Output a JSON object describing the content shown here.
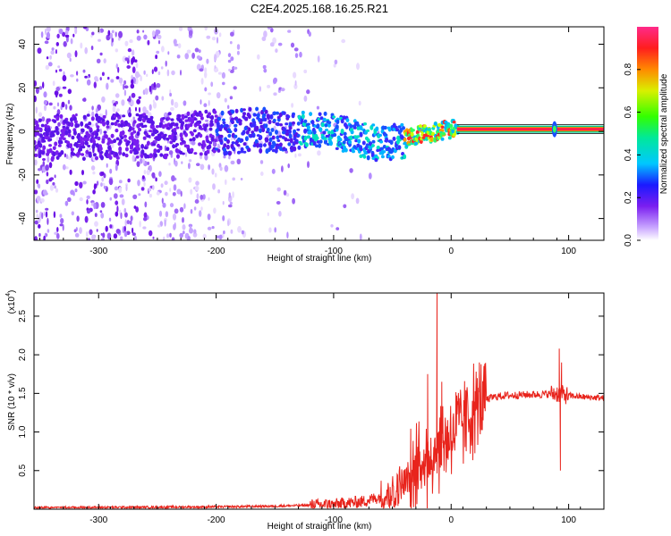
{
  "title": "C2E4.2025.168.16.25.R21",
  "colors": {
    "snr_line": "#e8241c",
    "spectrogram_band": "#7a1ef0",
    "carrier": "#ff1e4a"
  },
  "chart_data": [
    {
      "type": "heatmap",
      "title": "C2E4.2025.168.16.25.R21",
      "xlabel": "Height of straight line (km)",
      "ylabel": "Frequency (Hz)",
      "xlim": [
        -355,
        130
      ],
      "ylim": [
        -50,
        48
      ],
      "x_ticks": [
        -300,
        -200,
        -100,
        0,
        100
      ],
      "y_ticks": [
        -40,
        -20,
        0,
        20,
        40
      ],
      "x_tick_labels": [
        "-300",
        "-200",
        "-100",
        "0",
        "100"
      ],
      "y_tick_labels": [
        "-40",
        "-20",
        "0",
        "20",
        "40"
      ],
      "colorbar": {
        "label": "Normalized spectral amplitude",
        "range": [
          0,
          1
        ],
        "ticks": [
          0.0,
          0.2,
          0.4,
          0.6,
          0.8
        ],
        "tick_labels": [
          "0.0",
          "0.2",
          "0.4",
          "0.6",
          "0.8"
        ]
      },
      "band_center_hz": {
        "x": [
          -355,
          -250,
          -180,
          -130,
          -100,
          -80,
          -60,
          -45,
          -30,
          -20,
          -10,
          0,
          130
        ],
        "y": [
          -3,
          -2,
          0,
          1,
          0,
          -3,
          -6,
          -5,
          -2,
          -1,
          0,
          1,
          1
        ]
      },
      "carrier_hz": 1
    },
    {
      "type": "line",
      "xlabel": "Height of straight line (km)",
      "ylabel": "SNR (10 * v/v)",
      "y_multiplier": "(x10",
      "y_multiplier_exponent": "4",
      "xlim": [
        -355,
        130
      ],
      "ylim": [
        0,
        2.8
      ],
      "x_ticks": [
        -300,
        -200,
        -100,
        0,
        100
      ],
      "y_ticks": [
        0.5,
        1.0,
        1.5,
        2.0,
        2.5
      ],
      "x_tick_labels": [
        "-300",
        "-200",
        "-100",
        "0",
        "100"
      ],
      "y_tick_labels": [
        "0.5",
        "1.0",
        "1.5",
        "2.0",
        "2.5"
      ],
      "trend": {
        "x": [
          -355,
          -200,
          -150,
          -100,
          -75,
          -50,
          -35,
          -25,
          -15,
          -5,
          5,
          15,
          25,
          35,
          45,
          60,
          80,
          90,
          100,
          115,
          130
        ],
        "y": [
          0.02,
          0.03,
          0.04,
          0.06,
          0.1,
          0.2,
          0.4,
          0.6,
          0.75,
          0.9,
          1.05,
          1.2,
          1.38,
          1.45,
          1.47,
          1.48,
          1.49,
          1.5,
          1.47,
          1.45,
          1.44
        ]
      },
      "spikes": [
        {
          "x": -12,
          "y": 2.8
        },
        {
          "x": -20,
          "y": 1.75
        },
        {
          "x": -8,
          "y": 1.65
        },
        {
          "x": 92,
          "y": 2.08
        },
        {
          "x": 94,
          "y": 1.9
        },
        {
          "x": 93,
          "y": 0.5
        }
      ]
    }
  ]
}
